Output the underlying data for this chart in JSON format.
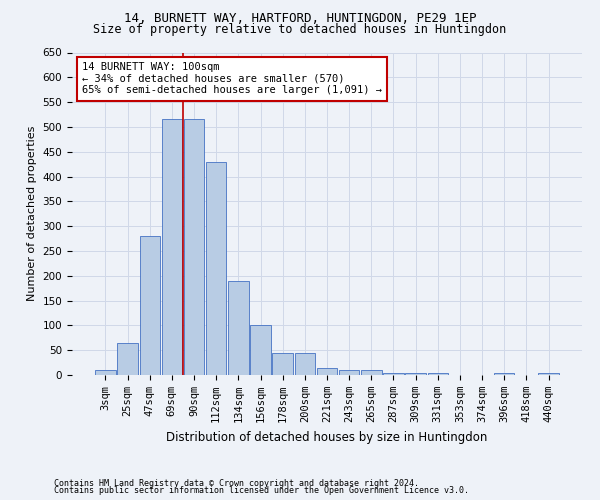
{
  "title1": "14, BURNETT WAY, HARTFORD, HUNTINGDON, PE29 1EP",
  "title2": "Size of property relative to detached houses in Huntingdon",
  "xlabel": "Distribution of detached houses by size in Huntingdon",
  "ylabel": "Number of detached properties",
  "footnote1": "Contains HM Land Registry data © Crown copyright and database right 2024.",
  "footnote2": "Contains public sector information licensed under the Open Government Licence v3.0.",
  "annotation_line1": "14 BURNETT WAY: 100sqm",
  "annotation_line2": "← 34% of detached houses are smaller (570)",
  "annotation_line3": "65% of semi-detached houses are larger (1,091) →",
  "bar_labels": [
    "3sqm",
    "25sqm",
    "47sqm",
    "69sqm",
    "90sqm",
    "112sqm",
    "134sqm",
    "156sqm",
    "178sqm",
    "200sqm",
    "221sqm",
    "243sqm",
    "265sqm",
    "287sqm",
    "309sqm",
    "331sqm",
    "353sqm",
    "374sqm",
    "396sqm",
    "418sqm",
    "440sqm"
  ],
  "bar_values": [
    10,
    65,
    280,
    515,
    515,
    430,
    190,
    100,
    45,
    45,
    15,
    10,
    10,
    5,
    5,
    5,
    0,
    0,
    5,
    0,
    5
  ],
  "bar_color": "#b8cce4",
  "bar_edge_color": "#4472c4",
  "vline_position": 3.5,
  "vline_color": "#c00000",
  "ylim": [
    0,
    650
  ],
  "yticks": [
    0,
    50,
    100,
    150,
    200,
    250,
    300,
    350,
    400,
    450,
    500,
    550,
    600,
    650
  ],
  "annotation_box_color": "white",
  "annotation_box_edge": "#c00000",
  "grid_color": "#d0d8e8",
  "bg_color": "#eef2f8",
  "title1_fontsize": 9,
  "title2_fontsize": 8.5,
  "ylabel_fontsize": 8,
  "xlabel_fontsize": 8.5,
  "tick_fontsize": 7.5,
  "annot_fontsize": 7.5,
  "footnote_fontsize": 6
}
